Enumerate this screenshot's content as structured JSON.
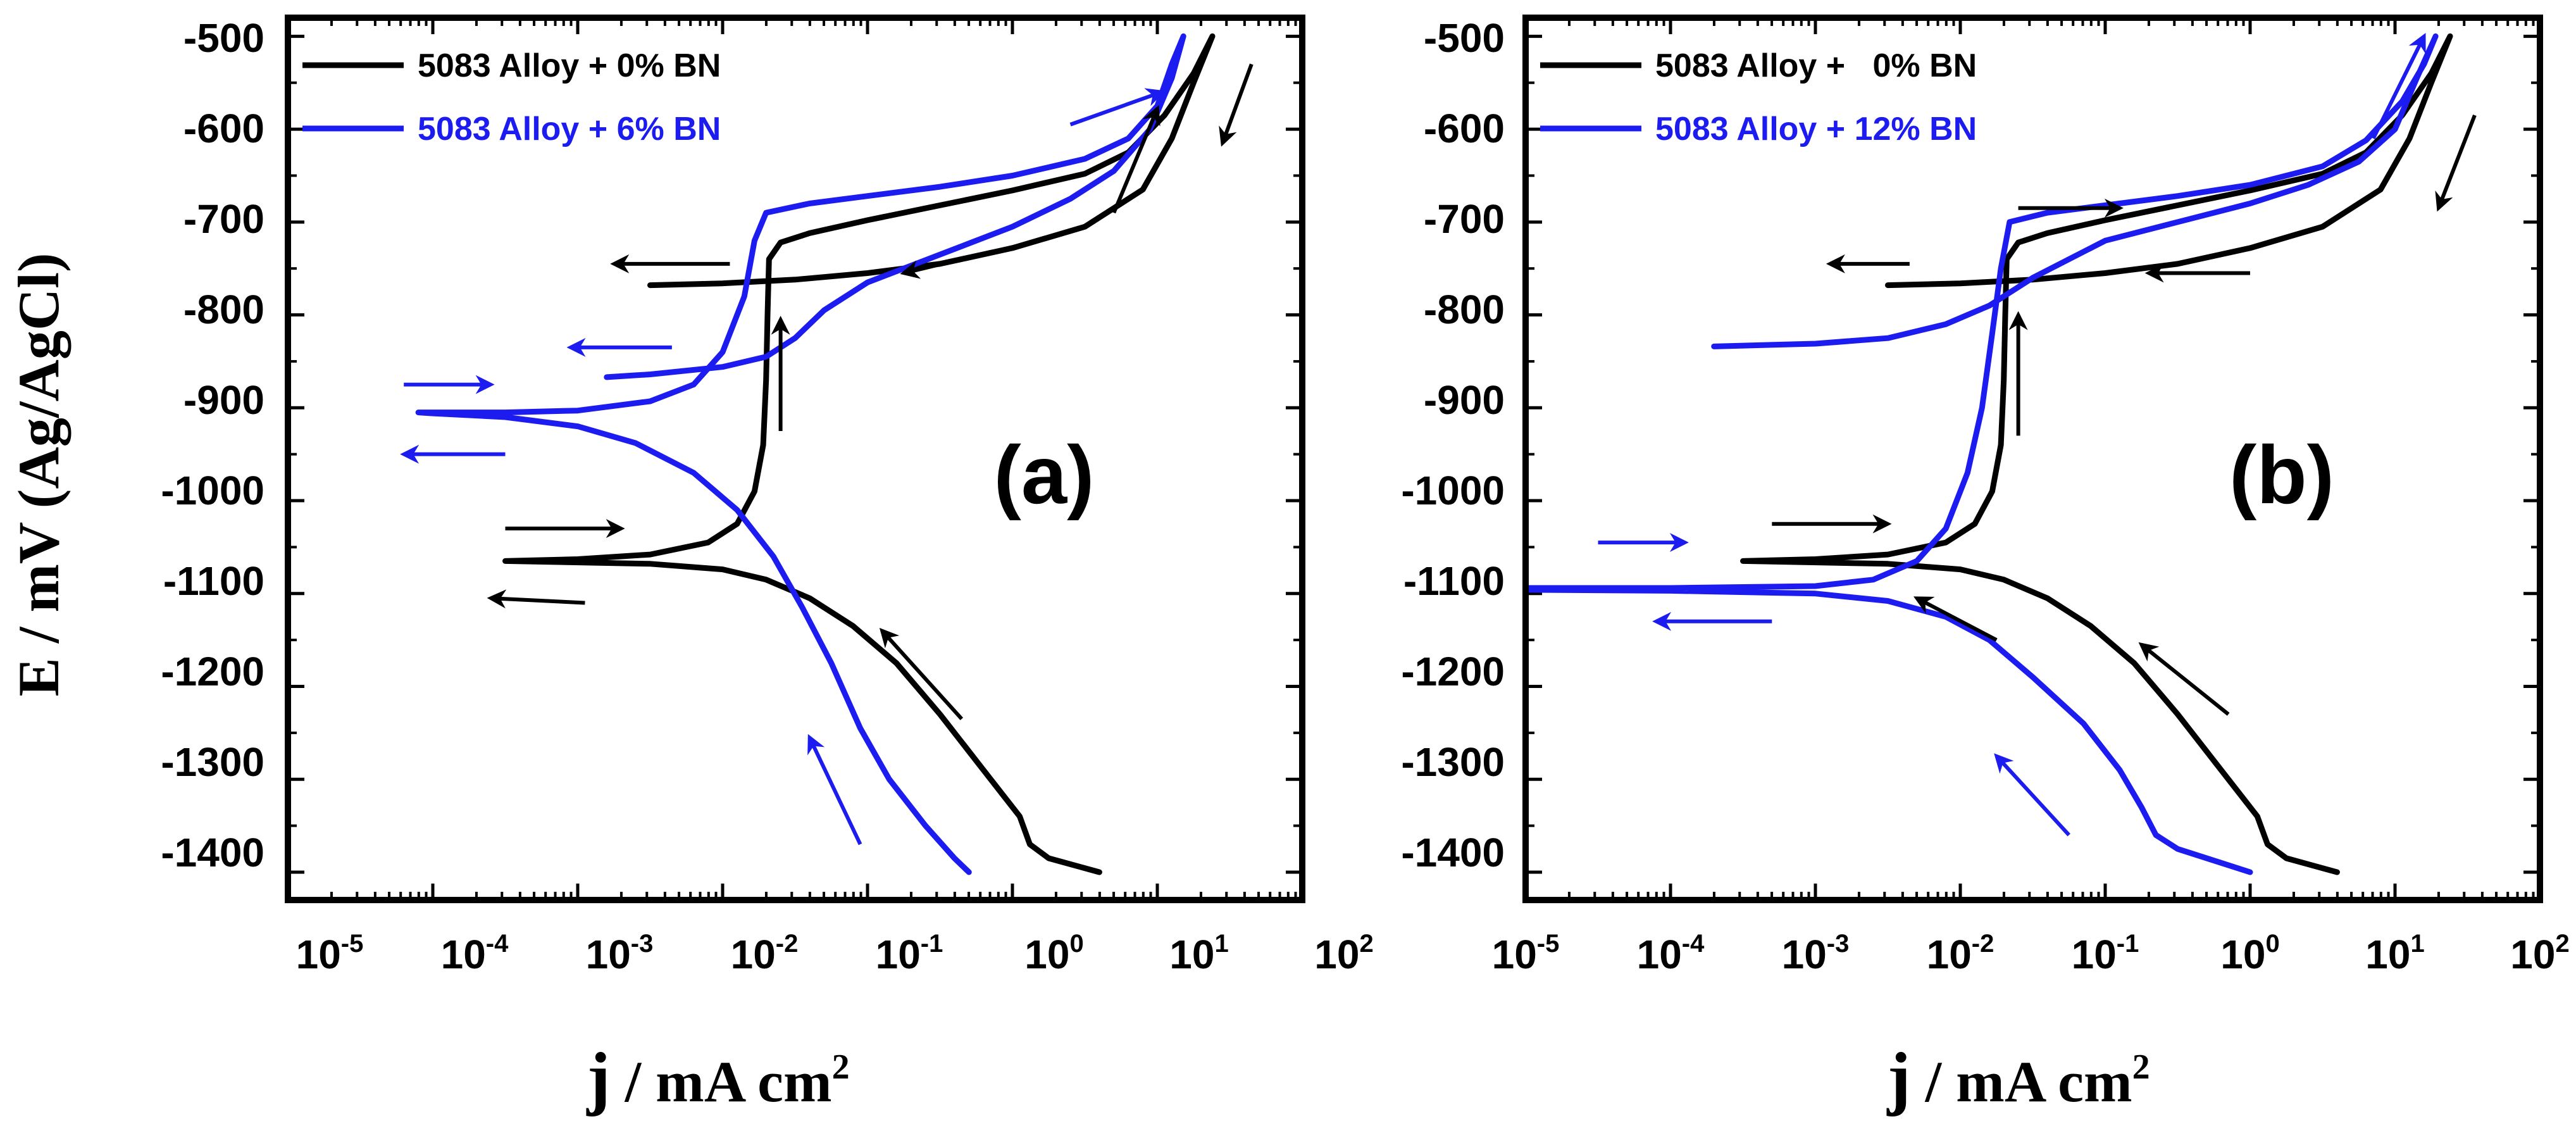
{
  "figure": {
    "ylabel": "E / mV (Ag/AgCl)",
    "xlabel_main": "j",
    "xlabel_rest": " / mA cm",
    "xlabel_exp": "2"
  },
  "axes": {
    "x_ticks": [
      {
        "base": "10",
        "exp": "-5"
      },
      {
        "base": "10",
        "exp": "-4"
      },
      {
        "base": "10",
        "exp": "-3"
      },
      {
        "base": "10",
        "exp": "-2"
      },
      {
        "base": "10",
        "exp": "-1"
      },
      {
        "base": "10",
        "exp": "0"
      },
      {
        "base": "10",
        "exp": "1"
      },
      {
        "base": "10",
        "exp": "2"
      }
    ],
    "y_ticks": [
      "-500",
      "-600",
      "-700",
      "-800",
      "-900",
      "-1000",
      "-1100",
      "-1200",
      "-1300",
      "-1400"
    ]
  },
  "colors": {
    "black_series": "#000000",
    "blue_series": "#1c1cf0"
  },
  "chart_data": [
    {
      "type": "line",
      "panel_label": "(a)",
      "xscale": "log",
      "xlim": [
        -5,
        2
      ],
      "ylim": [
        -1430,
        -480
      ],
      "xlabel": "j / mA cm2",
      "ylabel": "E / mV (Ag/AgCl)",
      "legend_position": "top-left",
      "series": [
        {
          "name": "5083 Alloy + 0% BN",
          "color": "#000000",
          "points_logj_E": [
            [
              0.6,
              -1400
            ],
            [
              0.25,
              -1385
            ],
            [
              0.12,
              -1370
            ],
            [
              0.05,
              -1340
            ],
            [
              -0.2,
              -1290
            ],
            [
              -0.5,
              -1230
            ],
            [
              -0.8,
              -1175
            ],
            [
              -1.1,
              -1135
            ],
            [
              -1.4,
              -1105
            ],
            [
              -1.7,
              -1085
            ],
            [
              -2,
              -1074
            ],
            [
              -2.5,
              -1068
            ],
            [
              -3.5,
              -1065
            ],
            [
              -3.5,
              -1065
            ],
            [
              -3,
              -1063
            ],
            [
              -2.5,
              -1058
            ],
            [
              -2.1,
              -1045
            ],
            [
              -1.9,
              -1025
            ],
            [
              -1.78,
              -990
            ],
            [
              -1.72,
              -940
            ],
            [
              -1.7,
              -870
            ],
            [
              -1.69,
              -800
            ],
            [
              -1.68,
              -740
            ],
            [
              -1.6,
              -722
            ],
            [
              -1.4,
              -712
            ],
            [
              -1,
              -698
            ],
            [
              -0.5,
              -682
            ],
            [
              0,
              -666
            ],
            [
              0.5,
              -648
            ],
            [
              0.8,
              -625
            ],
            [
              1.05,
              -585
            ],
            [
              1.25,
              -540
            ],
            [
              1.38,
              -500
            ],
            [
              1.38,
              -500
            ],
            [
              1.25,
              -550
            ],
            [
              1.1,
              -610
            ],
            [
              0.9,
              -665
            ],
            [
              0.5,
              -705
            ],
            [
              0,
              -728
            ],
            [
              -0.5,
              -745
            ],
            [
              -1,
              -755
            ],
            [
              -1.5,
              -762
            ],
            [
              -2,
              -766
            ],
            [
              -2.5,
              -768
            ]
          ]
        },
        {
          "name": "5083 Alloy + 6% BN",
          "color": "#1c1cf0",
          "points_logj_E": [
            [
              -0.3,
              -1400
            ],
            [
              -0.4,
              -1385
            ],
            [
              -0.6,
              -1350
            ],
            [
              -0.85,
              -1300
            ],
            [
              -1.05,
              -1245
            ],
            [
              -1.25,
              -1175
            ],
            [
              -1.45,
              -1115
            ],
            [
              -1.65,
              -1060
            ],
            [
              -1.9,
              -1010
            ],
            [
              -2.2,
              -970
            ],
            [
              -2.6,
              -938
            ],
            [
              -3,
              -920
            ],
            [
              -3.5,
              -910
            ],
            [
              -4,
              -906
            ],
            [
              -4.1,
              -905
            ],
            [
              -3.5,
              -905
            ],
            [
              -3,
              -903
            ],
            [
              -2.5,
              -893
            ],
            [
              -2.2,
              -875
            ],
            [
              -2,
              -840
            ],
            [
              -1.85,
              -780
            ],
            [
              -1.78,
              -720
            ],
            [
              -1.7,
              -690
            ],
            [
              -1.4,
              -680
            ],
            [
              -1,
              -672
            ],
            [
              -0.5,
              -662
            ],
            [
              0,
              -650
            ],
            [
              0.5,
              -632
            ],
            [
              0.8,
              -610
            ],
            [
              1,
              -575
            ],
            [
              1.1,
              -530
            ],
            [
              1.18,
              -500
            ],
            [
              1.18,
              -500
            ],
            [
              1.1,
              -545
            ],
            [
              0.95,
              -600
            ],
            [
              0.7,
              -645
            ],
            [
              0.4,
              -675
            ],
            [
              0,
              -705
            ],
            [
              -0.5,
              -735
            ],
            [
              -1,
              -765
            ],
            [
              -1.3,
              -795
            ],
            [
              -1.5,
              -825
            ],
            [
              -1.7,
              -845
            ],
            [
              -2,
              -856
            ],
            [
              -2.5,
              -864
            ],
            [
              -2.8,
              -867
            ]
          ]
        }
      ],
      "arrows": [
        {
          "color": "#000000",
          "from": [
            0.7,
            -690
          ],
          "to": [
            1.0,
            -578
          ]
        },
        {
          "color": "#000000",
          "from": [
            1.65,
            -530
          ],
          "to": [
            1.45,
            -615
          ]
        },
        {
          "color": "#000000",
          "from": [
            0.05,
            -725
          ],
          "to": [
            -0.75,
            -755
          ]
        },
        {
          "color": "#000000",
          "from": [
            -1.95,
            -745
          ],
          "to": [
            -2.75,
            -745
          ]
        },
        {
          "color": "#000000",
          "from": [
            -1.6,
            -925
          ],
          "to": [
            -1.6,
            -805
          ]
        },
        {
          "color": "#000000",
          "from": [
            -3.5,
            -1030
          ],
          "to": [
            -2.7,
            -1030
          ]
        },
        {
          "color": "#000000",
          "from": [
            -2.95,
            -1110
          ],
          "to": [
            -3.6,
            -1105
          ]
        },
        {
          "color": "#000000",
          "from": [
            -0.35,
            -1235
          ],
          "to": [
            -0.9,
            -1140
          ]
        },
        {
          "color": "#1c1cf0",
          "from": [
            0.4,
            -595
          ],
          "to": [
            1.03,
            -560
          ]
        },
        {
          "color": "#1c1cf0",
          "from": [
            -2.35,
            -835
          ],
          "to": [
            -3.05,
            -835
          ]
        },
        {
          "color": "#1c1cf0",
          "from": [
            -4.2,
            -875
          ],
          "to": [
            -3.6,
            -875
          ]
        },
        {
          "color": "#1c1cf0",
          "from": [
            -3.5,
            -950
          ],
          "to": [
            -4.2,
            -950
          ]
        },
        {
          "color": "#1c1cf0",
          "from": [
            -1.05,
            -1370
          ],
          "to": [
            -1.4,
            -1255
          ]
        }
      ]
    },
    {
      "type": "line",
      "panel_label": "(b)",
      "xscale": "log",
      "xlim": [
        -5,
        2
      ],
      "ylim": [
        -1430,
        -480
      ],
      "xlabel": "j / mA cm2",
      "ylabel": "",
      "legend_position": "top-left",
      "series": [
        {
          "name": "5083 Alloy +   0% BN",
          "color": "#000000",
          "points_logj_E": [
            [
              0.6,
              -1400
            ],
            [
              0.25,
              -1385
            ],
            [
              0.12,
              -1370
            ],
            [
              0.05,
              -1340
            ],
            [
              -0.2,
              -1290
            ],
            [
              -0.5,
              -1230
            ],
            [
              -0.8,
              -1175
            ],
            [
              -1.1,
              -1135
            ],
            [
              -1.4,
              -1105
            ],
            [
              -1.7,
              -1085
            ],
            [
              -2,
              -1074
            ],
            [
              -2.5,
              -1068
            ],
            [
              -3.5,
              -1065
            ],
            [
              -3.5,
              -1065
            ],
            [
              -3,
              -1063
            ],
            [
              -2.5,
              -1058
            ],
            [
              -2.1,
              -1045
            ],
            [
              -1.9,
              -1025
            ],
            [
              -1.78,
              -990
            ],
            [
              -1.72,
              -940
            ],
            [
              -1.7,
              -870
            ],
            [
              -1.69,
              -800
            ],
            [
              -1.68,
              -740
            ],
            [
              -1.6,
              -722
            ],
            [
              -1.4,
              -712
            ],
            [
              -1,
              -698
            ],
            [
              -0.5,
              -682
            ],
            [
              0,
              -666
            ],
            [
              0.5,
              -648
            ],
            [
              0.8,
              -625
            ],
            [
              1.05,
              -585
            ],
            [
              1.25,
              -540
            ],
            [
              1.38,
              -500
            ],
            [
              1.38,
              -500
            ],
            [
              1.25,
              -550
            ],
            [
              1.1,
              -610
            ],
            [
              0.9,
              -665
            ],
            [
              0.5,
              -705
            ],
            [
              0,
              -728
            ],
            [
              -0.5,
              -745
            ],
            [
              -1,
              -755
            ],
            [
              -1.5,
              -762
            ],
            [
              -2,
              -766
            ],
            [
              -2.5,
              -768
            ]
          ]
        },
        {
          "name": "5083 Alloy + 12% BN",
          "color": "#1c1cf0",
          "points_logj_E": [
            [
              0,
              -1400
            ],
            [
              -0.2,
              -1390
            ],
            [
              -0.5,
              -1375
            ],
            [
              -0.65,
              -1360
            ],
            [
              -0.75,
              -1330
            ],
            [
              -0.9,
              -1290
            ],
            [
              -1.15,
              -1240
            ],
            [
              -1.5,
              -1190
            ],
            [
              -1.8,
              -1150
            ],
            [
              -2.1,
              -1125
            ],
            [
              -2.5,
              -1108
            ],
            [
              -3,
              -1100
            ],
            [
              -4,
              -1097
            ],
            [
              -5,
              -1096
            ],
            [
              -5,
              -1094
            ],
            [
              -4,
              -1094
            ],
            [
              -3,
              -1092
            ],
            [
              -2.6,
              -1085
            ],
            [
              -2.3,
              -1065
            ],
            [
              -2.1,
              -1030
            ],
            [
              -1.95,
              -970
            ],
            [
              -1.85,
              -900
            ],
            [
              -1.78,
              -820
            ],
            [
              -1.72,
              -750
            ],
            [
              -1.66,
              -700
            ],
            [
              -1.4,
              -690
            ],
            [
              -1,
              -682
            ],
            [
              -0.5,
              -672
            ],
            [
              0,
              -660
            ],
            [
              0.5,
              -640
            ],
            [
              0.8,
              -612
            ],
            [
              1.05,
              -570
            ],
            [
              1.2,
              -530
            ],
            [
              1.28,
              -500
            ],
            [
              1.28,
              -500
            ],
            [
              1.15,
              -545
            ],
            [
              1,
              -600
            ],
            [
              0.75,
              -635
            ],
            [
              0.4,
              -660
            ],
            [
              0,
              -680
            ],
            [
              -0.5,
              -700
            ],
            [
              -1,
              -720
            ],
            [
              -1.5,
              -760
            ],
            [
              -1.8,
              -790
            ],
            [
              -2.1,
              -810
            ],
            [
              -2.5,
              -825
            ],
            [
              -3,
              -831
            ],
            [
              -3.7,
              -834
            ]
          ]
        }
      ],
      "arrows": [
        {
          "color": "#000000",
          "from": [
            -1.6,
            -685
          ],
          "to": [
            -0.9,
            -685
          ]
        },
        {
          "color": "#000000",
          "from": [
            1.55,
            -585
          ],
          "to": [
            1.3,
            -685
          ]
        },
        {
          "color": "#000000",
          "from": [
            0.0,
            -755
          ],
          "to": [
            -0.7,
            -755
          ]
        },
        {
          "color": "#000000",
          "from": [
            -2.35,
            -745
          ],
          "to": [
            -2.9,
            -745
          ]
        },
        {
          "color": "#000000",
          "from": [
            -1.6,
            -930
          ],
          "to": [
            -1.6,
            -800
          ]
        },
        {
          "color": "#000000",
          "from": [
            -3.3,
            -1025
          ],
          "to": [
            -2.5,
            -1025
          ]
        },
        {
          "color": "#000000",
          "from": [
            -1.75,
            -1150
          ],
          "to": [
            -2.3,
            -1105
          ]
        },
        {
          "color": "#000000",
          "from": [
            -0.15,
            -1230
          ],
          "to": [
            -0.75,
            -1155
          ]
        },
        {
          "color": "#1c1cf0",
          "from": [
            -4.5,
            -1045
          ],
          "to": [
            -3.9,
            -1045
          ]
        },
        {
          "color": "#1c1cf0",
          "from": [
            -3.3,
            -1130
          ],
          "to": [
            -4.1,
            -1130
          ]
        },
        {
          "color": "#1c1cf0",
          "from": [
            0.85,
            -610
          ],
          "to": [
            1.2,
            -500
          ]
        },
        {
          "color": "#1c1cf0",
          "from": [
            -1.25,
            -1360
          ],
          "to": [
            -1.75,
            -1275
          ]
        }
      ]
    }
  ]
}
